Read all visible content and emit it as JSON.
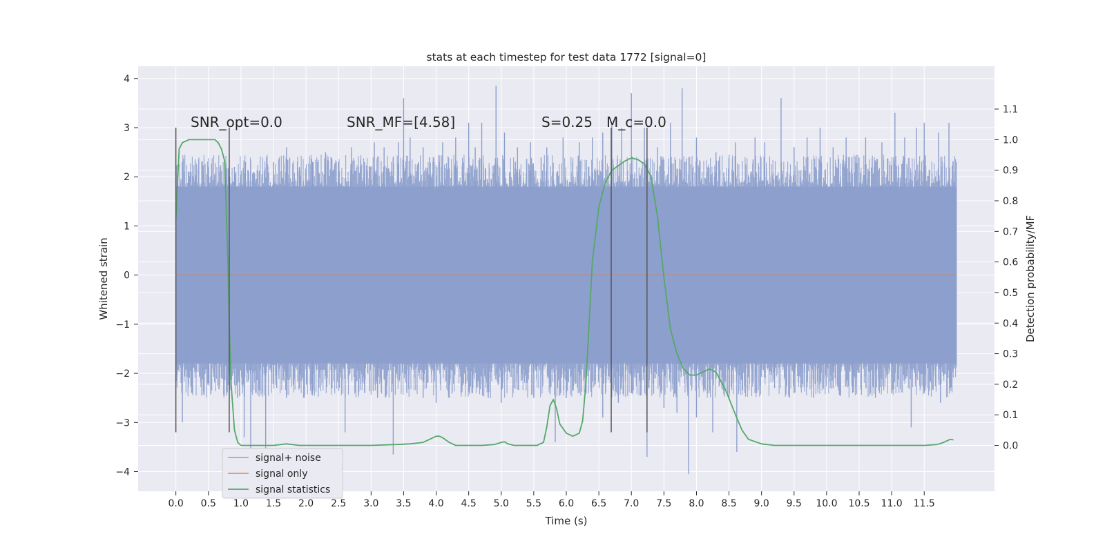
{
  "chart_data": {
    "type": "line",
    "title": "stats at each timestep for test data 1772 [signal=0]",
    "xlabel": "Time (s)",
    "ylabel": "Whitened strain",
    "y2label": "Detection probability/MF",
    "xlim": [
      -0.58,
      12.58
    ],
    "ylim": [
      -4.4,
      4.25
    ],
    "y2lim": [
      -0.15,
      1.24
    ],
    "x_ticks": [
      "0.0",
      "0.5",
      "1.0",
      "1.5",
      "2.0",
      "2.5",
      "3.0",
      "3.5",
      "4.0",
      "4.5",
      "5.0",
      "5.5",
      "6.0",
      "6.5",
      "7.0",
      "7.5",
      "8.0",
      "8.5",
      "9.0",
      "9.5",
      "10.0",
      "10.5",
      "11.0",
      "11.5"
    ],
    "y_ticks": [
      "4",
      "3",
      "2",
      "1",
      "0",
      "−1",
      "−2",
      "−3",
      "−4"
    ],
    "y2_ticks": [
      "1.1",
      "1.0",
      "0.9",
      "0.8",
      "0.7",
      "0.6",
      "0.5",
      "0.4",
      "0.3",
      "0.2",
      "0.1",
      "0.0"
    ],
    "grid": true,
    "legend_position": "lower-left",
    "colors": {
      "noise": "#8c9fcc",
      "signal": "#dd8452",
      "stats": "#55a868",
      "vline": "#555555",
      "background": "#eaeaf2",
      "grid": "#ffffff"
    },
    "series": [
      {
        "name": "signal+ noise",
        "render": "dense noise band",
        "time_range": [
          0.0,
          12.0
        ],
        "core_band": [
          -1.8,
          1.8
        ],
        "peaks": [
          [
            0.03,
            2.25
          ],
          [
            0.1,
            2.3
          ],
          [
            0.2,
            2.1
          ],
          [
            0.3,
            2.0
          ],
          [
            0.5,
            2.2
          ],
          [
            0.7,
            1.9
          ],
          [
            0.9,
            2.2
          ],
          [
            1.07,
            2.3
          ],
          [
            1.2,
            2.1
          ],
          [
            1.5,
            2.3
          ],
          [
            1.7,
            2.6
          ],
          [
            1.9,
            2.2
          ],
          [
            2.1,
            2.3
          ],
          [
            2.3,
            2.5
          ],
          [
            2.5,
            2.3
          ],
          [
            2.7,
            2.6
          ],
          [
            2.9,
            2.3
          ],
          [
            3.05,
            2.7
          ],
          [
            3.2,
            2.6
          ],
          [
            3.42,
            2.7
          ],
          [
            3.5,
            3.6
          ],
          [
            3.6,
            2.8
          ],
          [
            3.8,
            2.6
          ],
          [
            3.9,
            2.4
          ],
          [
            4.1,
            2.7
          ],
          [
            4.3,
            2.8
          ],
          [
            4.5,
            3.1
          ],
          [
            4.6,
            2.6
          ],
          [
            4.7,
            3.1
          ],
          [
            4.92,
            3.85
          ],
          [
            5.05,
            2.9
          ],
          [
            5.25,
            2.6
          ],
          [
            5.45,
            2.7
          ],
          [
            5.7,
            2.6
          ],
          [
            5.95,
            2.8
          ],
          [
            6.2,
            2.7
          ],
          [
            6.4,
            2.8
          ],
          [
            6.56,
            2.9
          ],
          [
            6.7,
            3.1
          ],
          [
            6.85,
            3.0
          ],
          [
            7.0,
            3.7
          ],
          [
            7.2,
            3.0
          ],
          [
            7.4,
            2.6
          ],
          [
            7.6,
            3.1
          ],
          [
            7.78,
            3.8
          ],
          [
            8.0,
            2.8
          ],
          [
            8.3,
            2.5
          ],
          [
            8.6,
            2.7
          ],
          [
            8.9,
            2.8
          ],
          [
            9.05,
            2.7
          ],
          [
            9.3,
            3.6
          ],
          [
            9.5,
            2.6
          ],
          [
            9.7,
            2.8
          ],
          [
            9.9,
            3.0
          ],
          [
            10.1,
            2.6
          ],
          [
            10.3,
            2.8
          ],
          [
            10.6,
            2.8
          ],
          [
            10.85,
            2.7
          ],
          [
            11.05,
            3.3
          ],
          [
            11.2,
            2.8
          ],
          [
            11.38,
            3.0
          ],
          [
            11.5,
            3.1
          ],
          [
            11.72,
            2.9
          ],
          [
            11.88,
            3.1
          ],
          [
            11.96,
            1.9
          ]
        ],
        "troughs": [
          [
            0.03,
            -1.9
          ],
          [
            0.1,
            -3.0
          ],
          [
            0.25,
            -2.4
          ],
          [
            0.5,
            -2.2
          ],
          [
            0.7,
            -2.1
          ],
          [
            0.95,
            -2.5
          ],
          [
            1.05,
            -3.3
          ],
          [
            1.15,
            -3.7
          ],
          [
            1.38,
            -3.6
          ],
          [
            1.55,
            -2.3
          ],
          [
            1.7,
            -2.5
          ],
          [
            1.9,
            -2.3
          ],
          [
            2.1,
            -2.4
          ],
          [
            2.4,
            -2.3
          ],
          [
            2.6,
            -3.2
          ],
          [
            2.9,
            -2.4
          ],
          [
            3.1,
            -2.5
          ],
          [
            3.34,
            -3.65
          ],
          [
            3.55,
            -2.4
          ],
          [
            3.8,
            -2.5
          ],
          [
            4.0,
            -2.6
          ],
          [
            4.2,
            -2.5
          ],
          [
            4.55,
            -2.4
          ],
          [
            4.8,
            -2.5
          ],
          [
            5.0,
            -2.6
          ],
          [
            5.2,
            -2.3
          ],
          [
            5.5,
            -2.5
          ],
          [
            5.75,
            -2.3
          ],
          [
            5.83,
            -3.4
          ],
          [
            6.0,
            -2.5
          ],
          [
            6.2,
            -2.4
          ],
          [
            6.56,
            -2.9
          ],
          [
            6.8,
            -2.6
          ],
          [
            7.0,
            -2.4
          ],
          [
            7.24,
            -3.7
          ],
          [
            7.5,
            -2.7
          ],
          [
            7.7,
            -2.8
          ],
          [
            7.88,
            -4.05
          ],
          [
            8.0,
            -2.9
          ],
          [
            8.25,
            -3.2
          ],
          [
            8.5,
            -2.5
          ],
          [
            8.62,
            -3.6
          ],
          [
            8.9,
            -2.4
          ],
          [
            9.2,
            -2.3
          ],
          [
            9.5,
            -2.4
          ],
          [
            9.8,
            -2.5
          ],
          [
            10.1,
            -2.3
          ],
          [
            10.4,
            -2.4
          ],
          [
            10.75,
            -2.5
          ],
          [
            11.0,
            -2.4
          ],
          [
            11.3,
            -3.1
          ],
          [
            11.5,
            -2.4
          ],
          [
            11.75,
            -2.6
          ],
          [
            11.9,
            -2.3
          ],
          [
            11.96,
            -1.8
          ]
        ]
      },
      {
        "name": "signal only",
        "axis": "left",
        "x": [
          0.0,
          12.0
        ],
        "y": [
          0.0,
          0.0
        ]
      },
      {
        "name": "signal statistics",
        "axis": "right",
        "x": [
          0.0,
          0.05,
          0.1,
          0.15,
          0.2,
          0.3,
          0.4,
          0.5,
          0.6,
          0.65,
          0.7,
          0.75,
          0.8,
          0.82,
          0.85,
          0.9,
          0.95,
          1.0,
          1.05,
          1.1,
          1.3,
          1.5,
          1.7,
          1.9,
          2.2,
          2.6,
          3.0,
          3.4,
          3.6,
          3.8,
          3.9,
          4.0,
          4.05,
          4.1,
          4.2,
          4.3,
          4.5,
          4.7,
          4.9,
          5.0,
          5.05,
          5.1,
          5.2,
          5.35,
          5.45,
          5.55,
          5.65,
          5.7,
          5.75,
          5.8,
          5.85,
          5.9,
          6.0,
          6.1,
          6.2,
          6.25,
          6.3,
          6.35,
          6.4,
          6.5,
          6.6,
          6.7,
          6.8,
          6.9,
          7.0,
          7.1,
          7.2,
          7.3,
          7.4,
          7.5,
          7.6,
          7.7,
          7.8,
          7.9,
          8.0,
          8.1,
          8.2,
          8.3,
          8.35,
          8.45,
          8.6,
          8.7,
          8.8,
          9.0,
          9.2,
          9.6,
          10.0,
          10.5,
          11.0,
          11.5,
          11.7,
          11.8,
          11.9,
          11.95
        ],
        "y": [
          0.74,
          0.97,
          0.99,
          0.995,
          1.0,
          1.0,
          1.0,
          1.0,
          1.0,
          0.99,
          0.97,
          0.93,
          0.6,
          0.4,
          0.2,
          0.05,
          0.01,
          0.0,
          0.0,
          0.0,
          0.0,
          0.0,
          0.005,
          0.0,
          0.0,
          0.0,
          0.0,
          0.003,
          0.005,
          0.01,
          0.02,
          0.03,
          0.03,
          0.025,
          0.01,
          0.0,
          0.0,
          0.0,
          0.003,
          0.01,
          0.012,
          0.005,
          0.0,
          0.0,
          0.0,
          0.0,
          0.01,
          0.06,
          0.13,
          0.15,
          0.12,
          0.07,
          0.04,
          0.03,
          0.04,
          0.08,
          0.2,
          0.4,
          0.6,
          0.78,
          0.86,
          0.9,
          0.915,
          0.93,
          0.94,
          0.935,
          0.92,
          0.88,
          0.75,
          0.55,
          0.38,
          0.3,
          0.25,
          0.23,
          0.23,
          0.24,
          0.25,
          0.24,
          0.22,
          0.18,
          0.1,
          0.05,
          0.02,
          0.005,
          0.0,
          0.0,
          0.0,
          0.0,
          0.0,
          0.0,
          0.003,
          0.01,
          0.02,
          0.018
        ]
      }
    ],
    "vertical_lines": [
      {
        "x": 0.0,
        "y_range": [
          -3.2,
          3.0
        ]
      },
      {
        "x": 0.82,
        "y_range": [
          -3.2,
          3.0
        ]
      },
      {
        "x": 6.69,
        "y_range": [
          -3.2,
          3.0
        ]
      },
      {
        "x": 7.24,
        "y_range": [
          -3.2,
          3.0
        ]
      }
    ],
    "annotations": [
      {
        "text": "SNR_opt=0.0",
        "x": 0.22,
        "y": 3.05
      },
      {
        "text": "SNR_MF=[4.58]",
        "x": 2.62,
        "y": 3.05
      },
      {
        "text": "S=0.25",
        "x": 5.62,
        "y": 3.05
      },
      {
        "text": "M_c=0.0",
        "x": 6.62,
        "y": 3.05
      }
    ]
  }
}
